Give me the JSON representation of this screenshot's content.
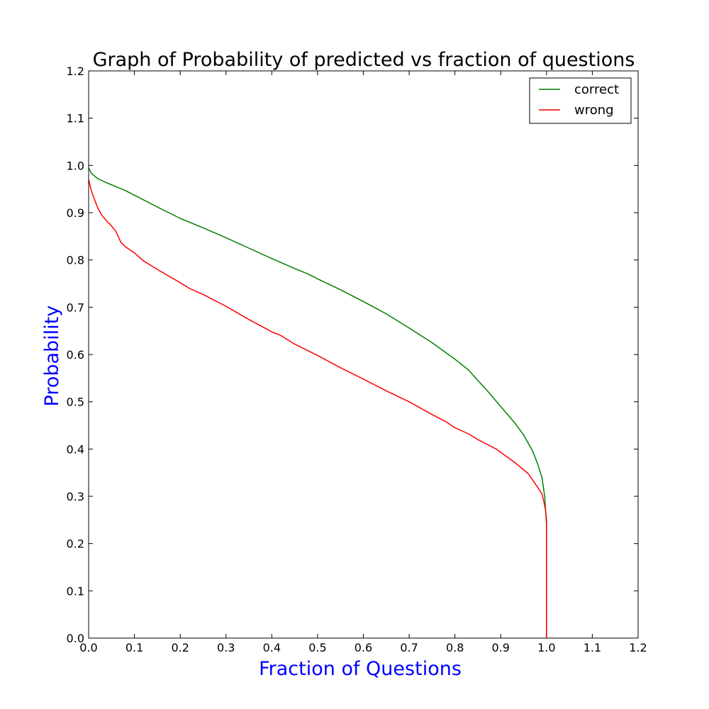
{
  "chart_data": {
    "type": "line",
    "title": "Graph of Probability of predicted vs fraction of questions",
    "xlabel": "Fraction of Questions",
    "ylabel": "Probability",
    "xlim": [
      0.0,
      1.2
    ],
    "ylim": [
      0.0,
      1.2
    ],
    "x_ticks": [
      "0.0",
      "0.1",
      "0.2",
      "0.3",
      "0.4",
      "0.5",
      "0.6",
      "0.7",
      "0.8",
      "0.9",
      "1.0",
      "1.1",
      "1.2"
    ],
    "y_ticks": [
      "0.0",
      "0.1",
      "0.2",
      "0.3",
      "0.4",
      "0.5",
      "0.6",
      "0.7",
      "0.8",
      "0.9",
      "1.0",
      "1.1",
      "1.2"
    ],
    "grid": false,
    "legend_position": "top-right",
    "axis_label_color": "#0000ff",
    "series": [
      {
        "name": "correct",
        "color": "#008000",
        "x": [
          0.0,
          0.005,
          0.01,
          0.02,
          0.04,
          0.06,
          0.08,
          0.1,
          0.15,
          0.2,
          0.25,
          0.3,
          0.35,
          0.4,
          0.45,
          0.48,
          0.5,
          0.55,
          0.6,
          0.65,
          0.7,
          0.75,
          0.8,
          0.83,
          0.85,
          0.87,
          0.9,
          0.93,
          0.95,
          0.97,
          0.98,
          0.99,
          0.993,
          0.996,
          0.998,
          1.0,
          1.0
        ],
        "values": [
          0.995,
          0.985,
          0.98,
          0.972,
          0.963,
          0.955,
          0.947,
          0.937,
          0.912,
          0.888,
          0.868,
          0.847,
          0.825,
          0.803,
          0.782,
          0.77,
          0.76,
          0.737,
          0.712,
          0.686,
          0.656,
          0.625,
          0.59,
          0.567,
          0.545,
          0.524,
          0.49,
          0.456,
          0.43,
          0.395,
          0.37,
          0.34,
          0.32,
          0.3,
          0.27,
          0.24,
          0.0
        ]
      },
      {
        "name": "wrong",
        "color": "#ff0000",
        "x": [
          0.0,
          0.005,
          0.01,
          0.02,
          0.03,
          0.04,
          0.05,
          0.06,
          0.07,
          0.08,
          0.1,
          0.12,
          0.15,
          0.2,
          0.22,
          0.25,
          0.3,
          0.35,
          0.4,
          0.42,
          0.45,
          0.5,
          0.55,
          0.6,
          0.65,
          0.7,
          0.75,
          0.78,
          0.8,
          0.83,
          0.85,
          0.89,
          0.93,
          0.96,
          0.98,
          0.99,
          0.995,
          0.998,
          1.0,
          1.0
        ],
        "values": [
          0.97,
          0.95,
          0.935,
          0.91,
          0.893,
          0.882,
          0.872,
          0.86,
          0.838,
          0.828,
          0.815,
          0.798,
          0.78,
          0.752,
          0.74,
          0.727,
          0.702,
          0.674,
          0.648,
          0.64,
          0.622,
          0.598,
          0.572,
          0.548,
          0.523,
          0.5,
          0.473,
          0.458,
          0.445,
          0.432,
          0.42,
          0.4,
          0.372,
          0.348,
          0.32,
          0.305,
          0.285,
          0.27,
          0.25,
          0.0
        ]
      }
    ]
  }
}
